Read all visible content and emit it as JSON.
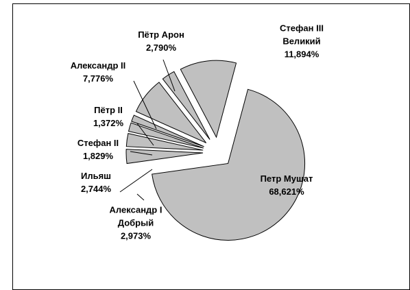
{
  "chart_data": {
    "type": "pie",
    "categories": [
      "Петр Мушат",
      "Александр I Добрый",
      "Ильяш",
      "Стефан II",
      "Пётр II",
      "Александр II",
      "Пётр Арон",
      "Стефан III Великий"
    ],
    "values": [
      68.621,
      2.973,
      2.744,
      1.829,
      1.372,
      7.776,
      2.79,
      11.894
    ],
    "value_labels": [
      "68,621%",
      "2,973%",
      "2,744%",
      "1,829%",
      "1,372%",
      "7,776%",
      "2,790%",
      "11,894%"
    ],
    "color": "#c0c0c0"
  }
}
